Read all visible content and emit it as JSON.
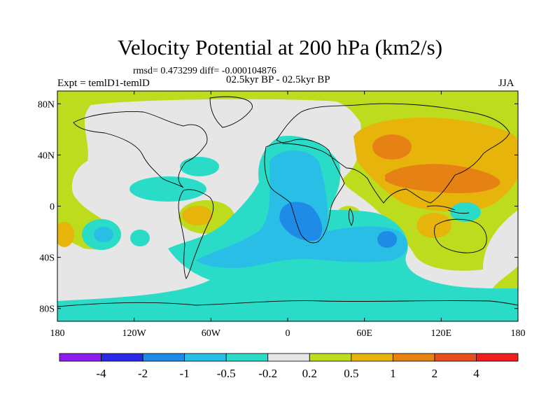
{
  "title": "Velocity Potential at 200 hPa (km2/s)",
  "stats_line": "rmsd= 0.473299 diff= -0.000104876",
  "left_label": "Expt = temlD1-temlD",
  "center_label": "02.5kyr BP - 02.5kyr BP",
  "right_label": "JJA",
  "axes": {
    "lon_ticks": [
      {
        "value": -180,
        "label": "180"
      },
      {
        "value": -120,
        "label": "120W"
      },
      {
        "value": -60,
        "label": "60W"
      },
      {
        "value": 0,
        "label": "0"
      },
      {
        "value": 60,
        "label": "60E"
      },
      {
        "value": 120,
        "label": "120E"
      },
      {
        "value": 180,
        "label": "180"
      }
    ],
    "lat_ticks": [
      {
        "value": 80,
        "label": "80N"
      },
      {
        "value": 40,
        "label": "40N"
      },
      {
        "value": 0,
        "label": "0"
      },
      {
        "value": -40,
        "label": "40S"
      },
      {
        "value": -80,
        "label": "80S"
      }
    ],
    "lon_range": [
      -180,
      180
    ],
    "lat_range": [
      -90,
      90
    ]
  },
  "colorbar": {
    "colors": [
      "#8c1cf0",
      "#2a2ae6",
      "#1e8ce6",
      "#28bee6",
      "#2adcc8",
      "#e6e6e6",
      "#bedc1e",
      "#e6b40a",
      "#e68214",
      "#e6501e",
      "#f01e1e"
    ],
    "labels": [
      "-4",
      "-2",
      "-1",
      "-0.5",
      "-0.2",
      "0.2",
      "0.5",
      "1",
      "2",
      "4"
    ]
  },
  "field_colors": {
    "background": "#e6e6e6",
    "pos_weak": "#bedc1e",
    "pos_mid": "#e6b40a",
    "pos_strong": "#e68214",
    "neg_weak": "#2adcc8",
    "neg_mid": "#28bee6",
    "neg_strong": "#1e8ce6"
  }
}
